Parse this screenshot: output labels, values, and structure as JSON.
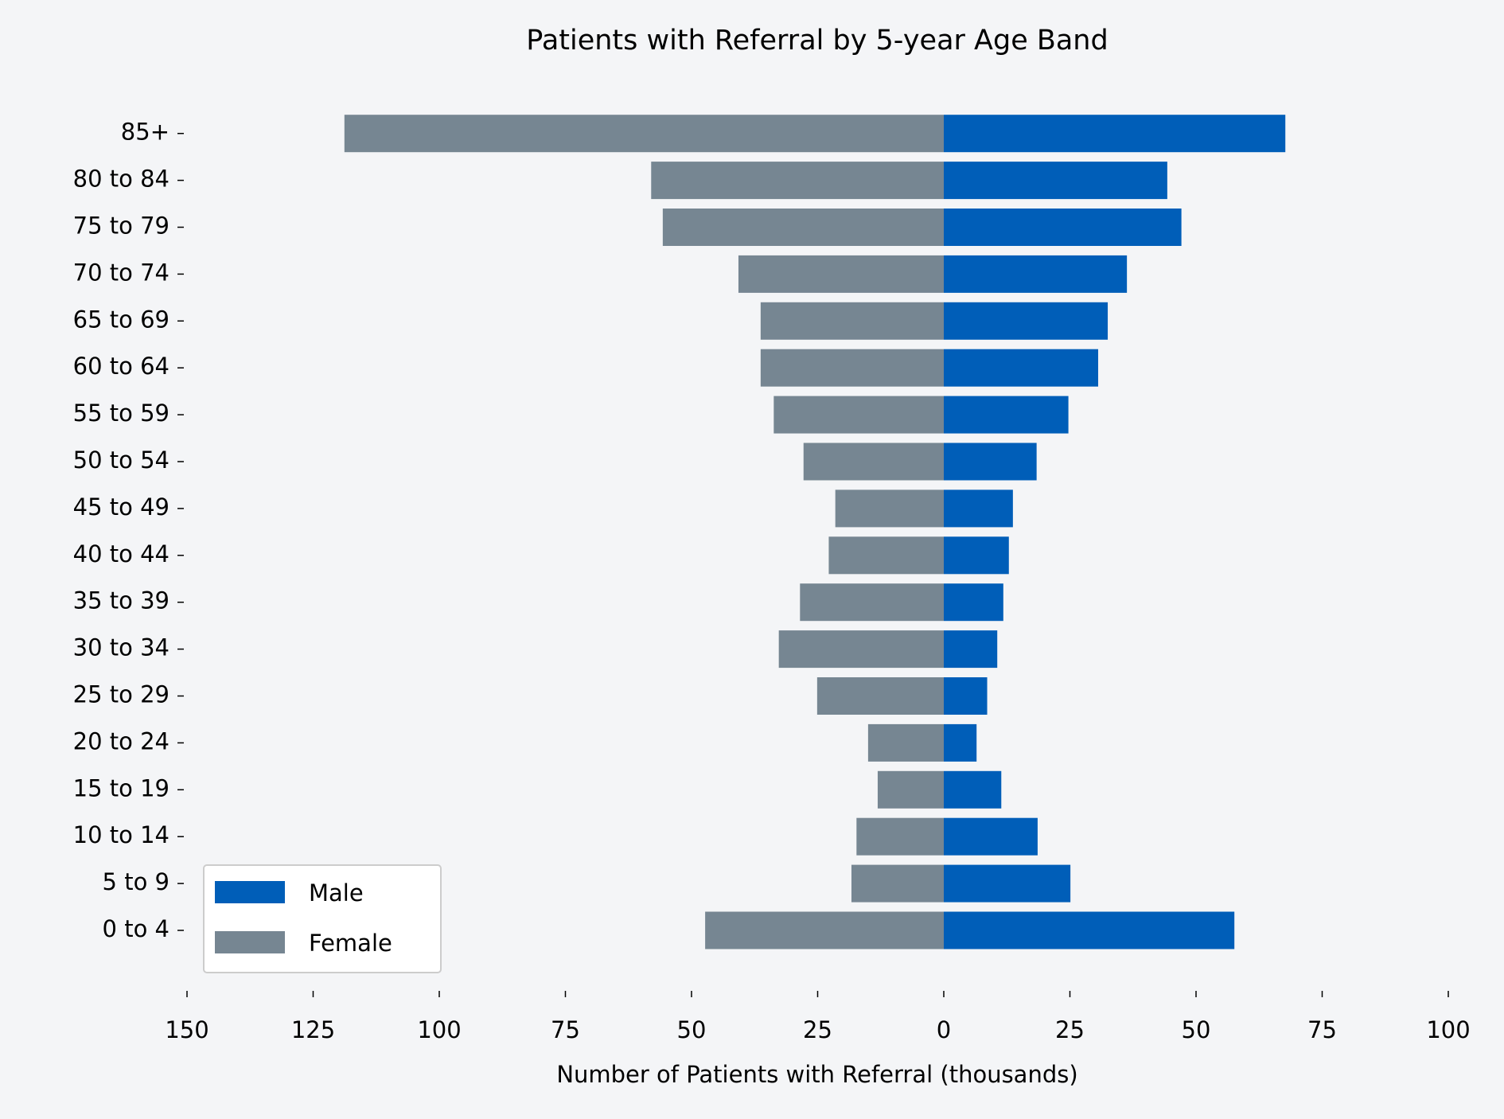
{
  "chart_data": {
    "type": "pyramid",
    "title": "Patients with Referral by 5-year Age Band",
    "xlabel": "Number of Patients with Referral (thousands)",
    "categories": [
      "0 to 4",
      "5 to 9",
      "10 to 14",
      "15 to 19",
      "20 to 24",
      "25 to 29",
      "30 to 34",
      "35 to 39",
      "40 to 44",
      "45 to 49",
      "50 to 54",
      "55 to 59",
      "60 to 64",
      "65 to 69",
      "70 to 74",
      "75 to 79",
      "80 to 84",
      "85+"
    ],
    "series": [
      {
        "name": "Male",
        "color": "#005eb8",
        "values": [
          57.6,
          25.1,
          18.6,
          11.4,
          6.5,
          8.6,
          10.6,
          11.8,
          12.9,
          13.7,
          18.4,
          24.7,
          30.6,
          32.5,
          36.3,
          47.1,
          44.3,
          67.7
        ]
      },
      {
        "name": "Female",
        "color": "#768692",
        "values": [
          -47.3,
          -18.3,
          -17.3,
          -13.1,
          -15.0,
          -25.1,
          -32.7,
          -28.5,
          -22.8,
          -21.5,
          -27.8,
          -33.7,
          -36.3,
          -36.3,
          -40.7,
          -55.7,
          -58.0,
          -118.8
        ]
      }
    ],
    "xlim": [
      -150,
      100
    ],
    "xticks": [
      {
        "value": -150,
        "label": "150"
      },
      {
        "value": -125,
        "label": "125"
      },
      {
        "value": -100,
        "label": "100"
      },
      {
        "value": -75,
        "label": "75"
      },
      {
        "value": -50,
        "label": "50"
      },
      {
        "value": -25,
        "label": "25"
      },
      0,
      25,
      50,
      75,
      100
    ],
    "legend": "lower left",
    "grid": false
  }
}
